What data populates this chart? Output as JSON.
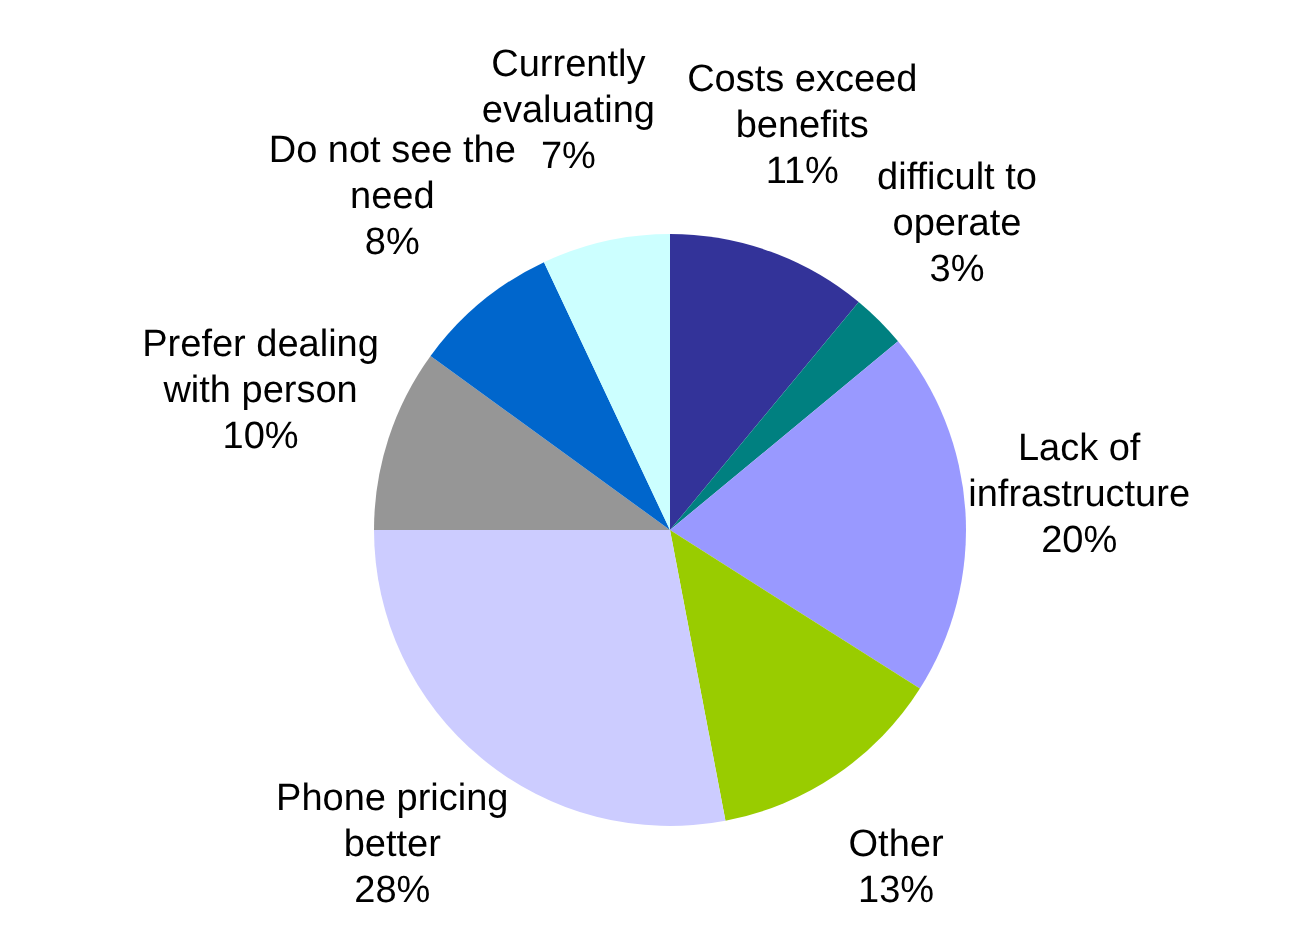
{
  "chart_data": {
    "type": "pie",
    "categories": [
      "Costs exceed benefits",
      "difficult to operate",
      "Lack of infrastructure",
      "Other",
      "Phone pricing better",
      "Prefer dealing with person",
      "Do not see the need",
      "Currently evaluating"
    ],
    "values": [
      11,
      3,
      20,
      13,
      28,
      10,
      8,
      7
    ],
    "value_labels": [
      "11%",
      "3%",
      "20%",
      "13%",
      "28%",
      "10%",
      "8%",
      "7%"
    ],
    "colors": [
      "#333399",
      "#008080",
      "#9999ff",
      "#99cc00",
      "#ccccff",
      "#969696",
      "#0066cc",
      "#ccffff"
    ],
    "legend": false
  }
}
